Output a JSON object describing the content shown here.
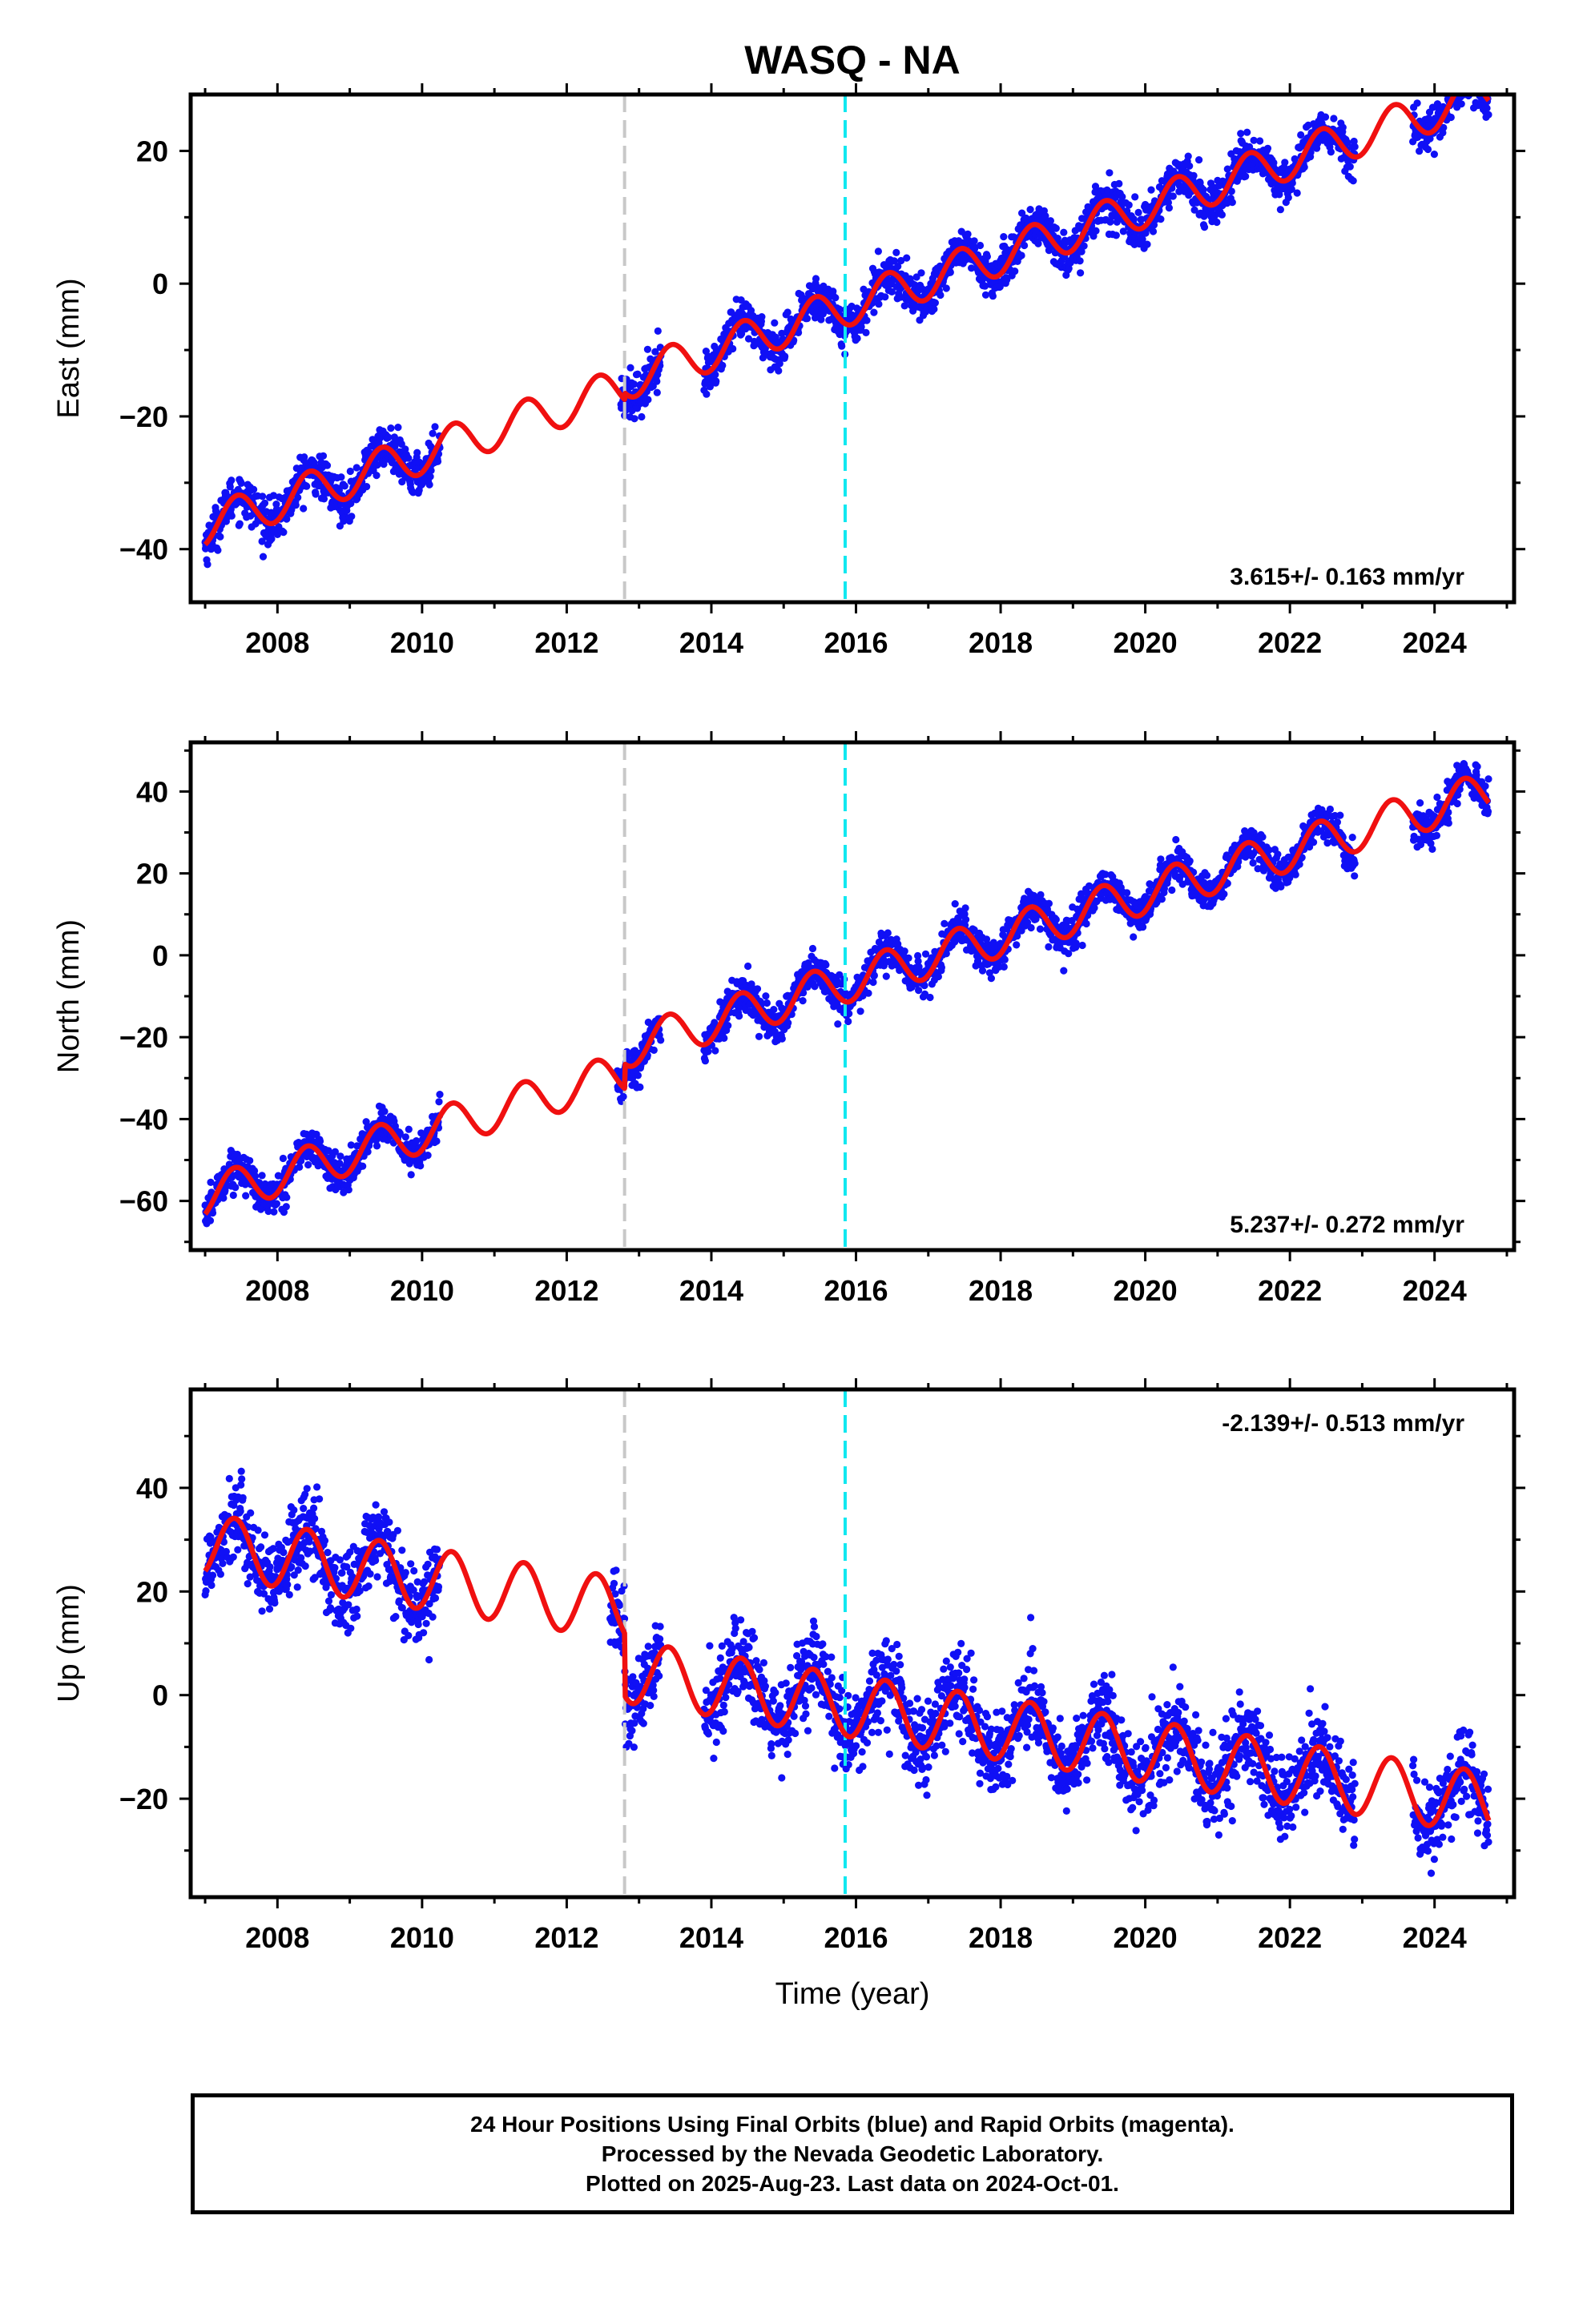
{
  "title": "WASQ - NA",
  "xlabel": "Time (year)",
  "colors": {
    "data": "#1010f5",
    "model": "#f01010",
    "event_gray": "#c8c8c8",
    "event_cyan": "#10e8f0",
    "frame": "#000000"
  },
  "footer": {
    "line1": "24 Hour Positions Using Final Orbits (blue) and Rapid Orbits (magenta).",
    "line2": "Processed by the Nevada Geodetic Laboratory.",
    "line3": "Plotted on 2025-Aug-23. Last data on 2024-Oct-01."
  },
  "chart_data": [
    {
      "type": "scatter",
      "component": "east",
      "ylabel": "East (mm)",
      "rate_label": "3.615+/- 0.163 mm/yr",
      "x_range": [
        2006.8,
        2025.1
      ],
      "xticks": [
        2008,
        2010,
        2012,
        2014,
        2016,
        2018,
        2020,
        2022,
        2024
      ],
      "ylim": [
        -48,
        28.5
      ],
      "yticks": [
        -40,
        -20,
        0,
        20
      ],
      "event_lines": [
        {
          "x": 2012.8,
          "color": "gray"
        },
        {
          "x": 2015.85,
          "color": "cyan"
        }
      ],
      "model": {
        "t0": 2007.0,
        "y0": -36.5,
        "rate": 3.615,
        "offsets": [
          {
            "t": 2012.8,
            "dy": 1.0
          }
        ],
        "annual_amp": 3.0,
        "annual_phase": -1.2
      },
      "data_segments": [
        [
          2007.0,
          2010.25
        ],
        [
          2012.75,
          2013.3
        ],
        [
          2013.9,
          2022.9
        ],
        [
          2023.7,
          2024.75
        ]
      ],
      "noise_mm": 1.6,
      "series": [
        {
          "name": "Final Orbits (blue)",
          "role": "data"
        },
        {
          "name": "fit",
          "role": "model"
        }
      ]
    },
    {
      "type": "scatter",
      "component": "north",
      "ylabel": "North (mm)",
      "rate_label": "5.237+/- 0.272 mm/yr",
      "x_range": [
        2006.8,
        2025.1
      ],
      "xticks": [
        2008,
        2010,
        2012,
        2014,
        2016,
        2018,
        2020,
        2022,
        2024
      ],
      "ylim": [
        -72,
        52
      ],
      "yticks": [
        -60,
        -40,
        -20,
        0,
        20,
        40
      ],
      "event_lines": [
        {
          "x": 2012.8,
          "color": "gray"
        },
        {
          "x": 2015.85,
          "color": "cyan"
        }
      ],
      "model": {
        "t0": 2007.0,
        "y0": -59.0,
        "rate": 5.237,
        "offsets": [
          {
            "t": 2012.8,
            "dy": 6.0
          }
        ],
        "annual_amp": 5.0,
        "annual_phase": -1.0
      },
      "data_segments": [
        [
          2007.0,
          2010.25
        ],
        [
          2012.7,
          2013.3
        ],
        [
          2013.9,
          2022.9
        ],
        [
          2023.7,
          2024.75
        ]
      ],
      "noise_mm": 2.2,
      "series": [
        {
          "name": "Final Orbits (blue)",
          "role": "data"
        },
        {
          "name": "fit",
          "role": "model"
        }
      ]
    },
    {
      "type": "scatter",
      "component": "up",
      "ylabel": "Up (mm)",
      "rate_label": "-2.139+/- 0.513 mm/yr",
      "x_range": [
        2006.8,
        2025.1
      ],
      "xticks": [
        2008,
        2010,
        2012,
        2014,
        2016,
        2018,
        2020,
        2022,
        2024
      ],
      "ylim": [
        -39,
        59
      ],
      "yticks": [
        -20,
        0,
        20,
        40
      ],
      "event_lines": [
        {
          "x": 2012.8,
          "color": "gray"
        },
        {
          "x": 2015.85,
          "color": "cyan"
        }
      ],
      "model": {
        "t0": 2007.0,
        "y0": 29.0,
        "rate": -2.139,
        "offsets": [
          {
            "t": 2012.8,
            "dy": -12.0
          }
        ],
        "annual_amp": 6.0,
        "annual_phase": -1.0
      },
      "data_segments": [
        [
          2007.0,
          2010.25
        ],
        [
          2012.6,
          2013.3
        ],
        [
          2013.9,
          2022.9
        ],
        [
          2023.7,
          2024.75
        ]
      ],
      "noise_mm": 4.0,
      "series": [
        {
          "name": "Final Orbits (blue)",
          "role": "data"
        },
        {
          "name": "fit",
          "role": "model"
        }
      ]
    }
  ]
}
